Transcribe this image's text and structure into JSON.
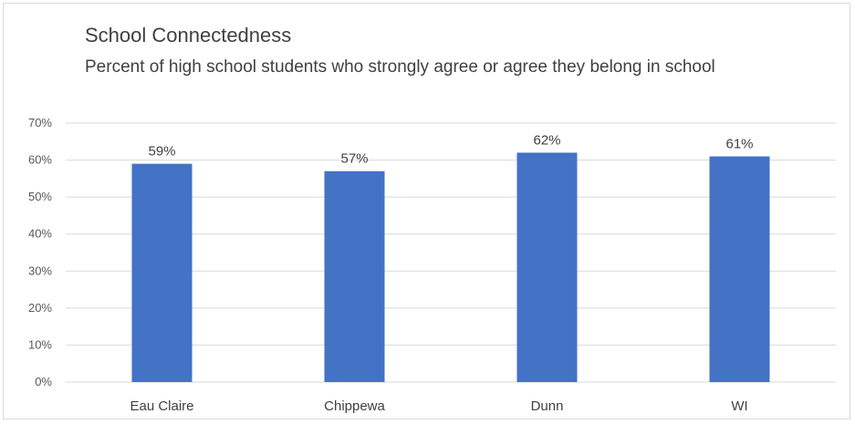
{
  "chart_data": {
    "type": "bar",
    "title": "School Connectedness",
    "subtitle": "Percent of high school students who strongly agree or agree they belong in school",
    "categories": [
      "Eau Claire",
      "Chippewa",
      "Dunn",
      "WI"
    ],
    "values": [
      59,
      57,
      62,
      61
    ],
    "data_labels": [
      "59%",
      "57%",
      "62%",
      "61%"
    ],
    "ylim": [
      0,
      70
    ],
    "y_ticks": [
      0,
      10,
      20,
      30,
      40,
      50,
      60,
      70
    ],
    "y_tick_labels": [
      "0%",
      "10%",
      "20%",
      "30%",
      "40%",
      "50%",
      "60%",
      "70%"
    ],
    "grid": true,
    "legend": "none",
    "bar_color": "#4472c4",
    "grid_color": "#d9d9d9"
  }
}
